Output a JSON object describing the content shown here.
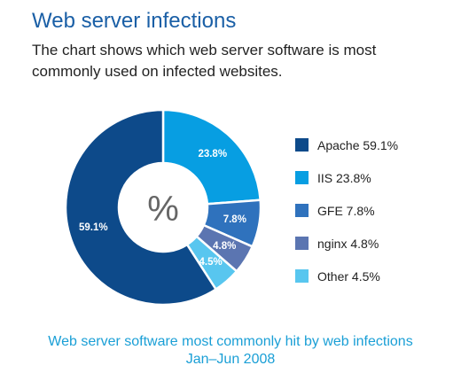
{
  "title": "Web server infections",
  "subtitle": "The chart shows which web server software is most commonly used on infected websites.",
  "caption": {
    "line1": "Web server software most commonly hit by web infections",
    "line2": "Jan–Jun 2008"
  },
  "chart_data": {
    "type": "pie",
    "variant": "donut",
    "center_label": "%",
    "categories": [
      "Apache",
      "IIS",
      "GFE",
      "nginx",
      "Other"
    ],
    "values": [
      59.1,
      23.8,
      7.8,
      4.8,
      4.5
    ],
    "slice_labels": [
      "59.1%",
      "23.8%",
      "7.8%",
      "4.8%",
      "4.5%"
    ],
    "colors": [
      "#0d4a8a",
      "#079ee2",
      "#2f72bd",
      "#5b75b1",
      "#58c6ef"
    ],
    "legend": {
      "placement": "right",
      "entries": [
        "Apache 59.1%",
        "IIS 23.8%",
        "GFE 7.8%",
        "nginx 4.8%",
        "Other 4.5%"
      ]
    }
  }
}
